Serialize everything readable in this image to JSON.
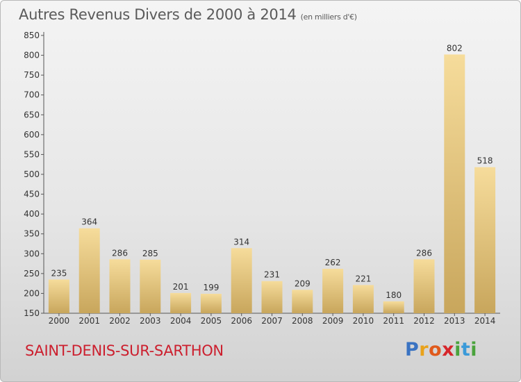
{
  "header": {
    "title": "Autres Revenus Divers de 2000 à 2014",
    "unit": "(en milliers d'€)"
  },
  "footer": {
    "commune": "SAINT-DENIS-SUR-SARTHON",
    "logo": "Proxiti"
  },
  "colors": {
    "bar_light": "#f6dc9b",
    "bar_dark": "#c8a65c",
    "commune": "#cc1f2e"
  },
  "chart_data": {
    "type": "bar",
    "title": "Autres Revenus Divers de 2000 à 2014",
    "subtitle": "(en milliers d'€)",
    "categories": [
      "2000",
      "2001",
      "2002",
      "2003",
      "2004",
      "2005",
      "2006",
      "2007",
      "2008",
      "2009",
      "2010",
      "2011",
      "2012",
      "2013",
      "2014"
    ],
    "values": [
      235,
      364,
      286,
      285,
      201,
      199,
      314,
      231,
      209,
      262,
      221,
      180,
      286,
      802,
      518
    ],
    "ylim": [
      150,
      850
    ],
    "yticks": [
      150,
      200,
      250,
      300,
      350,
      400,
      450,
      500,
      550,
      600,
      650,
      700,
      750,
      800,
      850
    ],
    "grid": false,
    "legend": "none"
  }
}
